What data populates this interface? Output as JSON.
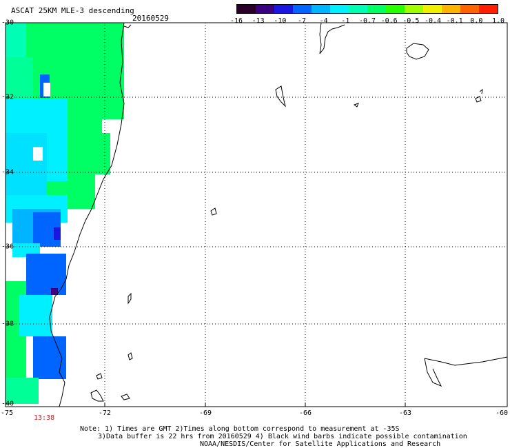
{
  "header": {
    "title": "ASCAT 25KM MLE-3 descending",
    "date": "20160529"
  },
  "colorbar": {
    "colors": [
      "#2a0028",
      "#3a0080",
      "#1a18e0",
      "#0064ff",
      "#00b4ff",
      "#00f0ff",
      "#00ffb4",
      "#00ff64",
      "#28ff00",
      "#a0ff00",
      "#f0f000",
      "#ffb400",
      "#ff6400",
      "#ff1e00"
    ],
    "tick_labels": [
      "-16",
      "-13",
      "-10",
      "-7",
      "-4",
      "-1",
      "-0.7",
      "-0.6",
      "-0.5",
      "-0.4",
      "-0.1",
      "0.0",
      "1.0"
    ]
  },
  "map": {
    "lat_labels": [
      "-30",
      "-32",
      "-34",
      "-36",
      "-38",
      "-40"
    ],
    "lon_labels": [
      "-75",
      "-72",
      "-69",
      "-66",
      "-63",
      "-60"
    ],
    "lon_range": [
      -75,
      -60
    ],
    "lat_range": [
      -40,
      -30
    ],
    "gridlines": "dotted",
    "coastline_color": "#000000"
  },
  "time_label": "13:38",
  "notes": [
    "Note: 1) Times are GMT 2)Times along bottom correspond to measurement at -35S",
    "3)Data buffer is 22 hrs from 20160529 4) Black wind barbs indicate possible contamination",
    "NOAA/NESDIS/Center for Satellite Applications and Research"
  ]
}
